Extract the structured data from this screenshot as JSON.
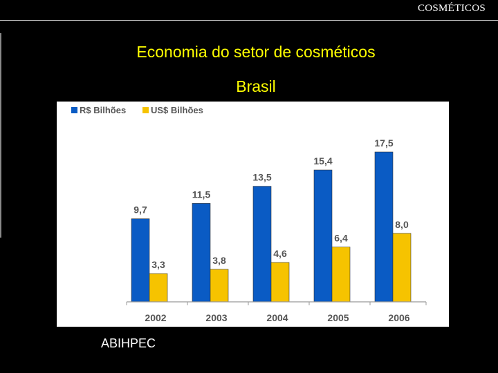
{
  "header": {
    "label": "COSMÉTICOS"
  },
  "title": {
    "line1": "Economia do setor de cosméticos",
    "line2": "Brasil"
  },
  "source": "ABIHPEC",
  "colors": {
    "brl": "#0a5bc4",
    "usd": "#f6c300",
    "title": "#ffff00"
  },
  "chart_data": {
    "type": "bar",
    "categories": [
      "2002",
      "2003",
      "2004",
      "2005",
      "2006"
    ],
    "series": [
      {
        "name": "R$ Bilhões",
        "values": [
          9.7,
          11.5,
          13.5,
          15.4,
          17.5
        ],
        "labels": [
          "9,7",
          "11,5",
          "13,5",
          "15,4",
          "17,5"
        ]
      },
      {
        "name": "US$ Bilhões",
        "values": [
          3.3,
          3.8,
          4.6,
          6.4,
          8.0
        ],
        "labels": [
          "3,3",
          "3,8",
          "4,6",
          "6,4",
          "8,0"
        ]
      }
    ],
    "ylim": [
      0,
      20
    ],
    "legend": "top-left",
    "grid": false
  }
}
